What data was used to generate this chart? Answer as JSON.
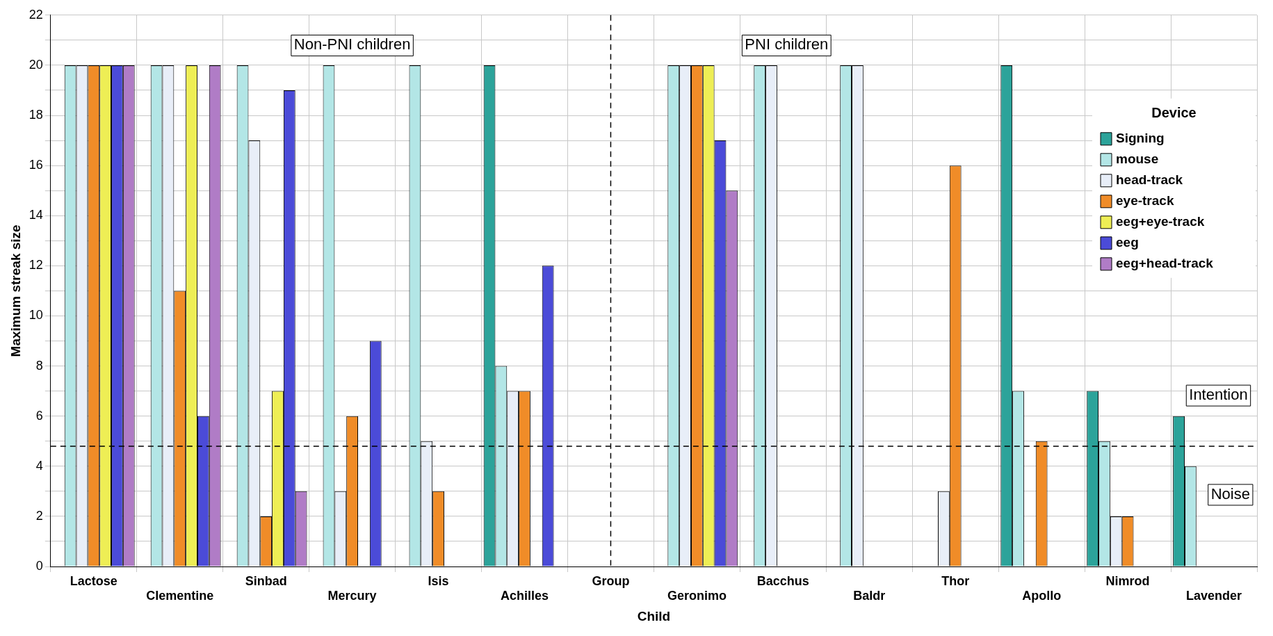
{
  "chart_data": {
    "type": "bar",
    "xlabel": "Child",
    "ylabel": "Maximum streak size",
    "legend_title": "Device",
    "categories": [
      "Lactose",
      "Clementine",
      "Sinbad",
      "Mercury",
      "Isis",
      "Achilles",
      "Group",
      "Geronimo",
      "Bacchus",
      "Baldr",
      "Thor",
      "Apollo",
      "Nimrod",
      "Lavender"
    ],
    "series": [
      {
        "name": "Signing",
        "color": "#2ca39a",
        "values": [
          null,
          null,
          null,
          null,
          null,
          20,
          null,
          null,
          null,
          null,
          null,
          20,
          7,
          6
        ]
      },
      {
        "name": "mouse",
        "color": "#b3e6e6",
        "values": [
          20,
          20,
          20,
          20,
          20,
          8,
          null,
          20,
          20,
          20,
          null,
          7,
          5,
          4
        ]
      },
      {
        "name": "head-track",
        "color": "#e8eef8",
        "values": [
          20,
          20,
          17,
          3,
          5,
          7,
          null,
          20,
          20,
          20,
          3,
          null,
          2,
          null
        ]
      },
      {
        "name": "eye-track",
        "color": "#f08c28",
        "values": [
          20,
          11,
          2,
          6,
          3,
          7,
          null,
          20,
          null,
          null,
          16,
          5,
          2,
          null
        ]
      },
      {
        "name": "eeg+eye-track",
        "color": "#eeee55",
        "values": [
          20,
          20,
          7,
          null,
          null,
          null,
          null,
          20,
          null,
          null,
          null,
          null,
          null,
          null
        ]
      },
      {
        "name": "eeg",
        "color": "#4b4bd8",
        "values": [
          20,
          6,
          19,
          9,
          null,
          12,
          null,
          17,
          null,
          null,
          null,
          null,
          null,
          null
        ]
      },
      {
        "name": "eeg+head-track",
        "color": "#b07cc6",
        "values": [
          20,
          20,
          3,
          null,
          null,
          null,
          null,
          15,
          null,
          null,
          null,
          null,
          null,
          null
        ]
      }
    ],
    "ylim": [
      0,
      22
    ],
    "yticks": [
      0,
      {
        "value": 1,
        "label": null
      },
      2,
      {
        "value": 3,
        "label": null
      },
      4,
      {
        "value": 5,
        "label": null
      },
      6,
      {
        "value": 7,
        "label": null
      },
      8,
      {
        "value": 9,
        "label": null
      },
      10,
      {
        "value": 11,
        "label": null
      },
      12,
      {
        "value": 13,
        "label": null
      },
      14,
      {
        "value": 15,
        "label": null
      },
      16,
      {
        "value": 17,
        "label": null
      },
      18,
      {
        "value": 19,
        "label": null
      },
      20,
      {
        "value": 21,
        "label": null
      },
      22
    ],
    "grid": true,
    "legend": "top right",
    "ref_lines": [
      {
        "axis": "y",
        "value": 4.8,
        "color": "#000000",
        "line_style": "dashed"
      },
      {
        "axis": "x",
        "value": "Group",
        "color": "#000000",
        "line_style": "dashed"
      }
    ],
    "annotations": [
      "Non-PNI children",
      "PNI children",
      "Intention",
      "Noise"
    ]
  }
}
